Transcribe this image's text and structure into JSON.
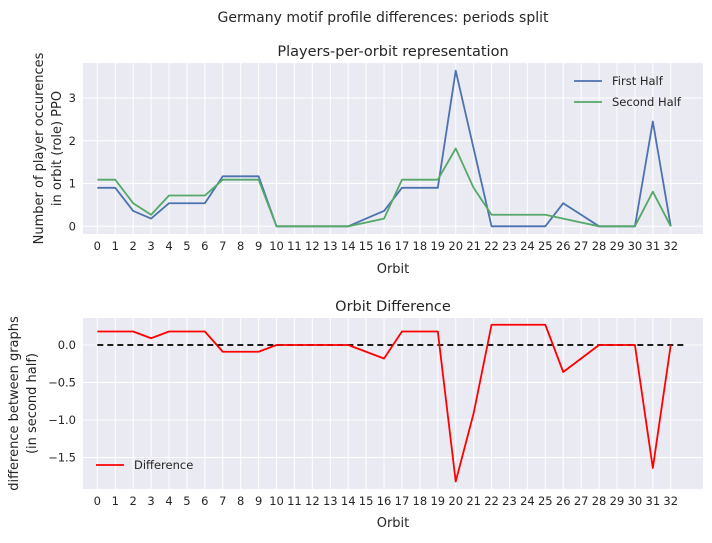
{
  "figure": {
    "title": "Germany motif profile differences: periods split"
  },
  "chart_data": [
    {
      "type": "line",
      "title": "Players-per-orbit representation",
      "xlabel": "Orbit",
      "ylabel_lines": [
        "Number of player occurences",
        "in orbit (role) PPO"
      ],
      "x": [
        0,
        1,
        2,
        3,
        4,
        5,
        6,
        7,
        8,
        9,
        10,
        11,
        12,
        13,
        14,
        15,
        16,
        17,
        18,
        19,
        20,
        21,
        22,
        23,
        24,
        25,
        26,
        27,
        28,
        29,
        30,
        31,
        32
      ],
      "xlim": [
        -0.8,
        33.8
      ],
      "ylim": [
        -0.18,
        3.82
      ],
      "yticks": [
        0,
        1,
        2,
        3
      ],
      "grid": true,
      "legend_position": "top-right",
      "series": [
        {
          "name": "First Half",
          "color": "#4C72B0",
          "values": [
            0.9,
            0.9,
            0.36,
            0.18,
            0.54,
            0.54,
            0.54,
            1.17,
            1.17,
            1.17,
            0,
            0,
            0,
            0,
            0,
            0.18,
            0.36,
            0.9,
            0.9,
            0.9,
            3.64,
            1.82,
            0,
            0,
            0,
            0,
            0.54,
            0.27,
            0,
            0,
            0,
            2.45,
            0
          ]
        },
        {
          "name": "Second Half",
          "color": "#55A868",
          "values": [
            1.09,
            1.09,
            0.54,
            0.27,
            0.72,
            0.72,
            0.72,
            1.09,
            1.09,
            1.09,
            0,
            0,
            0,
            0,
            0,
            0.09,
            0.18,
            1.09,
            1.09,
            1.09,
            1.82,
            0.9,
            0.27,
            0.27,
            0.27,
            0.27,
            0.18,
            0.09,
            0,
            0,
            0,
            0.81,
            0
          ]
        }
      ]
    },
    {
      "type": "line",
      "title": "Orbit Difference",
      "xlabel": "Orbit",
      "ylabel_lines": [
        "difference between graphs",
        "(in second half)"
      ],
      "x": [
        0,
        1,
        2,
        3,
        4,
        5,
        6,
        7,
        8,
        9,
        10,
        11,
        12,
        13,
        14,
        15,
        16,
        17,
        18,
        19,
        20,
        21,
        22,
        23,
        24,
        25,
        26,
        27,
        28,
        29,
        30,
        31,
        32
      ],
      "xlim": [
        -0.8,
        33.8
      ],
      "ylim": [
        -1.92,
        0.36
      ],
      "yticks": [
        0.0,
        -0.5,
        -1.0,
        -1.5
      ],
      "ytick_labels": [
        "0.0",
        "−0.5",
        "−1.0",
        "−1.5"
      ],
      "grid": true,
      "legend_position": "bottom-left",
      "zero_line": {
        "y": 0,
        "x_from": 0,
        "x_to": 32.8,
        "color": "#000000",
        "style": "dashed"
      },
      "series": [
        {
          "name": "Difference",
          "color": "#FF0000",
          "values": [
            0.18,
            0.18,
            0.18,
            0.09,
            0.18,
            0.18,
            0.18,
            -0.09,
            -0.09,
            -0.09,
            0,
            0,
            0,
            0,
            0,
            -0.09,
            -0.18,
            0.18,
            0.18,
            0.18,
            -1.82,
            -0.91,
            0.27,
            0.27,
            0.27,
            0.27,
            -0.36,
            -0.18,
            0,
            0,
            0,
            -1.64,
            0
          ]
        }
      ]
    }
  ]
}
